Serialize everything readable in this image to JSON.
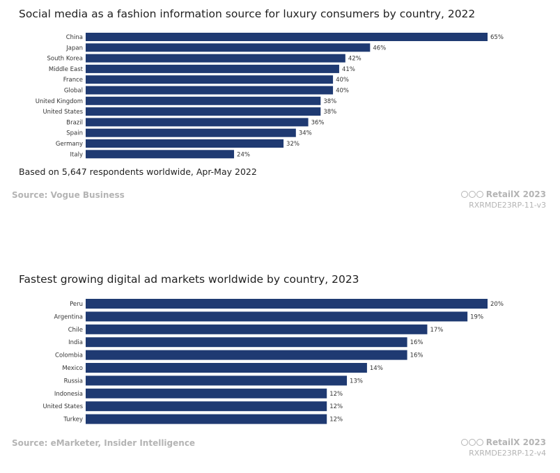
{
  "chart_data": [
    {
      "type": "bar",
      "orientation": "horizontal",
      "title": "Social media as a fashion information source for luxury consumers by country, 2022",
      "categories": [
        "China",
        "Japan",
        "South Korea",
        "Middle East",
        "France",
        "Global",
        "United Kingdom",
        "United States",
        "Brazil",
        "Spain",
        "Germany",
        "Italy"
      ],
      "values": [
        65,
        46,
        42,
        41,
        40,
        40,
        38,
        38,
        36,
        34,
        32,
        24
      ],
      "value_suffix": "%",
      "xlim": [
        0,
        65
      ],
      "note": "Based on 5,647 respondents worldwide, Apr-May 2022",
      "source": "Source: Vogue Business",
      "bar_color": "#1f3a72"
    },
    {
      "type": "bar",
      "orientation": "horizontal",
      "title": "Fastest growing digital ad markets worldwide by country, 2023",
      "categories": [
        "Peru",
        "Argentina",
        "Chile",
        "India",
        "Colombia",
        "Mexico",
        "Russia",
        "Indonesia",
        "United States",
        "Turkey"
      ],
      "values": [
        20,
        19,
        17,
        16,
        16,
        14,
        13,
        12,
        12,
        12
      ],
      "value_suffix": "%",
      "xlim": [
        0,
        20
      ],
      "source": "Source: eMarketer, Insider Intelligence",
      "bar_color": "#1f3a72"
    }
  ],
  "branding": [
    {
      "name": "RetailX 2023",
      "code": "RXRMDE23RP-11-v3"
    },
    {
      "name": "RetailX 2023",
      "code": "RXRMDE23RP-12-v4"
    }
  ]
}
